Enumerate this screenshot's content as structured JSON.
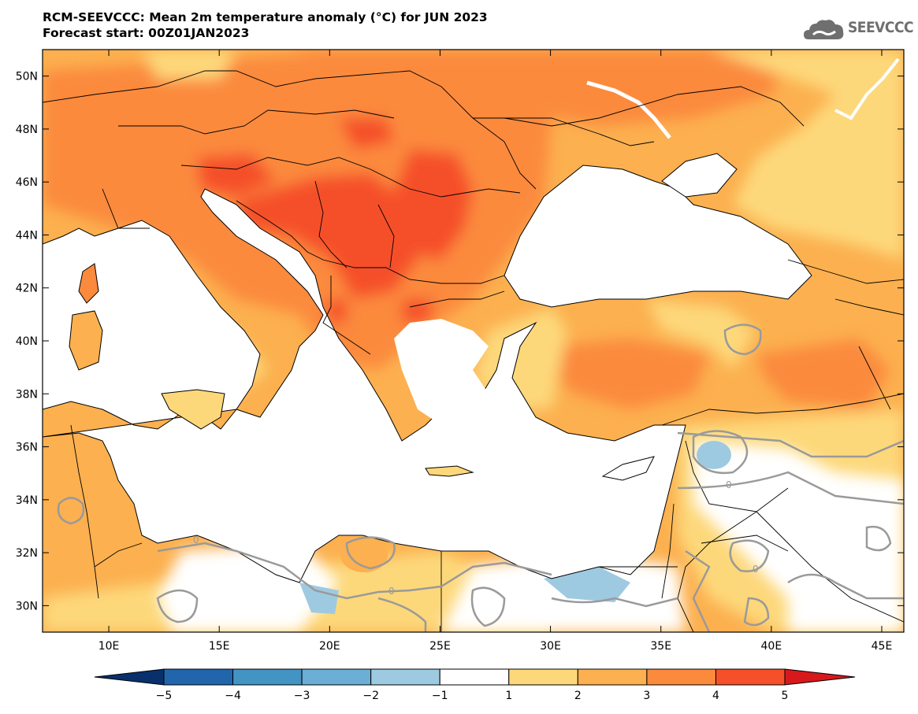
{
  "header": {
    "title_line1": "RCM-SEEVCCC: Mean 2m temperature anomaly (°C) for JUN 2023",
    "title_line2": "Forecast start: 00Z01JAN2023"
  },
  "logo": {
    "text": "SEEVCCC",
    "icon": "cloud-icon"
  },
  "map": {
    "lon_range": [
      7,
      46
    ],
    "lat_range": [
      29,
      51
    ],
    "lon_ticks": [
      {
        "v": 10,
        "label": "10E"
      },
      {
        "v": 15,
        "label": "15E"
      },
      {
        "v": 20,
        "label": "20E"
      },
      {
        "v": 25,
        "label": "25E"
      },
      {
        "v": 30,
        "label": "30E"
      },
      {
        "v": 35,
        "label": "35E"
      },
      {
        "v": 40,
        "label": "40E"
      },
      {
        "v": 45,
        "label": "45E"
      }
    ],
    "lat_ticks": [
      {
        "v": 30,
        "label": "30N"
      },
      {
        "v": 32,
        "label": "32N"
      },
      {
        "v": 34,
        "label": "34N"
      },
      {
        "v": 36,
        "label": "36N"
      },
      {
        "v": 38,
        "label": "38N"
      },
      {
        "v": 40,
        "label": "40N"
      },
      {
        "v": 42,
        "label": "42N"
      },
      {
        "v": 44,
        "label": "44N"
      },
      {
        "v": 46,
        "label": "46N"
      },
      {
        "v": 48,
        "label": "48N"
      },
      {
        "v": 50,
        "label": "50N"
      }
    ]
  },
  "colorbar": {
    "labels": [
      "−5",
      "−4",
      "−3",
      "−2",
      "−1",
      "1",
      "2",
      "3",
      "4",
      "5"
    ],
    "colors": [
      "#08306b",
      "#2166ac",
      "#4393c3",
      "#6baed6",
      "#9ecae1",
      "#ffffff",
      "#fdd87a",
      "#fcb04f",
      "#fb8a3c",
      "#f5502a",
      "#d7191c"
    ]
  },
  "contour_labels": [
    "0",
    "0",
    "0",
    "0"
  ]
}
